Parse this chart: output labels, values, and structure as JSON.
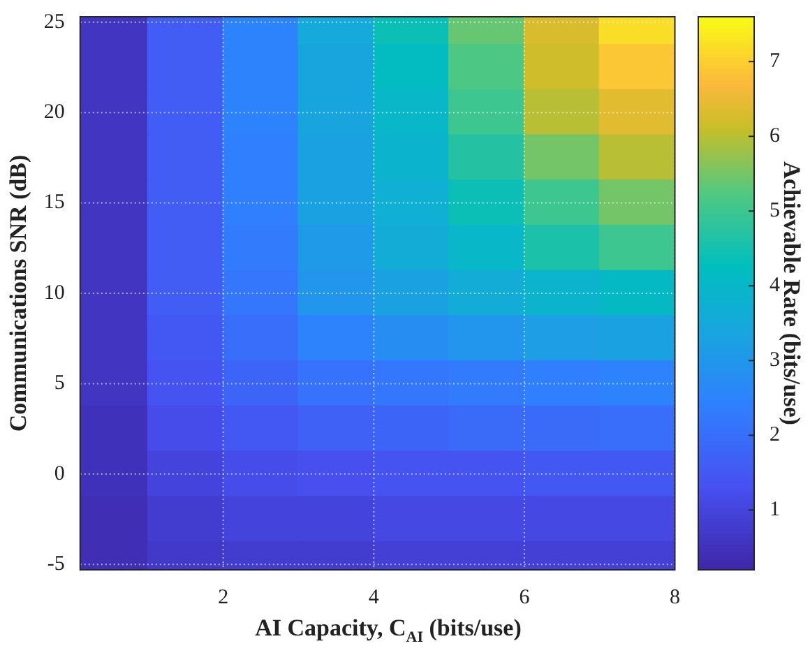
{
  "chart_data": {
    "type": "heatmap",
    "xlabel": "AI Capacity, C$_{AI}$ (bits/use)",
    "ylabel": "Communications SNR (dB)",
    "clabel": "Achievable Rate (bits/use)",
    "x": [
      0.5,
      1.5,
      2.5,
      3.5,
      4.5,
      5.5,
      6.5,
      7.5
    ],
    "y": [
      25,
      22.5,
      20,
      17.5,
      15,
      12.5,
      10,
      7.5,
      5,
      2.5,
      0,
      -2.5,
      -5
    ],
    "cells": [
      [
        0.6,
        1.6,
        2.5,
        3.5,
        4.4,
        5.4,
        6.3,
        7.2
      ],
      [
        0.6,
        1.6,
        2.5,
        3.4,
        4.2,
        5.2,
        6.2,
        6.9
      ],
      [
        0.6,
        1.6,
        2.5,
        3.4,
        4.0,
        5.0,
        6.0,
        6.4
      ],
      [
        0.6,
        1.6,
        2.4,
        3.3,
        3.9,
        4.7,
        5.5,
        6.0
      ],
      [
        0.6,
        1.6,
        2.4,
        3.3,
        3.7,
        4.4,
        5.0,
        5.5
      ],
      [
        0.6,
        1.6,
        2.3,
        3.1,
        3.6,
        4.0,
        4.6,
        5.0
      ],
      [
        0.6,
        1.6,
        2.2,
        3.0,
        3.3,
        3.6,
        3.9,
        4.1
      ],
      [
        0.6,
        1.5,
        2.0,
        2.5,
        2.8,
        3.0,
        3.2,
        3.3
      ],
      [
        0.6,
        1.4,
        1.8,
        2.1,
        2.2,
        2.3,
        2.4,
        2.5
      ],
      [
        0.5,
        1.2,
        1.5,
        1.7,
        1.8,
        1.9,
        1.9,
        2.0
      ],
      [
        0.5,
        1.0,
        1.2,
        1.3,
        1.4,
        1.4,
        1.5,
        1.5
      ],
      [
        0.4,
        0.8,
        1.0,
        1.0,
        1.1,
        1.1,
        1.1,
        1.1
      ],
      [
        0.4,
        0.7,
        0.8,
        0.8,
        0.9,
        0.9,
        0.9,
        0.9
      ]
    ],
    "xlim": [
      0.1,
      8
    ],
    "ylim": [
      -5.3,
      25.3
    ],
    "xticks": [
      2,
      4,
      6,
      8
    ],
    "yticks": [
      -5,
      0,
      5,
      10,
      15,
      20,
      25
    ],
    "clim": [
      0.2,
      7.6
    ],
    "cticks": [
      1,
      2,
      3,
      4,
      5,
      6,
      7
    ],
    "grid": true
  }
}
